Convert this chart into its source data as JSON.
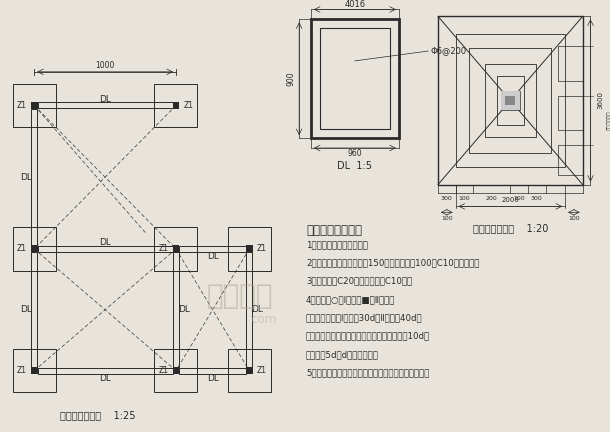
{
  "bg_color": "#e8e4dc",
  "line_color": "#2a2a2a",
  "caption_left": "双亭基础平面图    1:25",
  "caption_dl": "DL  1:5",
  "caption_construction": "双亭基础施工图    1:20",
  "design_title": "双亭基础设计说明",
  "design_notes": [
    "1、基础采用现浇钗筋突。",
    "2、基底做法：素土夸实，150厚碎石垫层，100厚C10素祡垫层。",
    "3、基础绾为C20绾，垫层绾为C10绾。",
    "4、钗筋：○表Ⅰ级钗，■表Ⅱ级钗；",
    "钗筋锡固长度：Ⅰ级钗为30d，Ⅱ级钗为40d；",
    "钗筋采用电焺搭接，电焺搭接长度：单面焺为10d，",
    "双面焺为5d（d为主钗直径）",
    "5、如有未详尽之处，参见国家有关施工及验收规范。"
  ],
  "watermark_text": "土木在线",
  "watermark_en": "com",
  "dim_top": "1000",
  "dim_dl_top": "4016",
  "dim_dl_left": "900",
  "dim_dl_bot": "960",
  "dim_rebar": "Φ6@200",
  "z1_label": "Z1",
  "dl_label": "DL"
}
